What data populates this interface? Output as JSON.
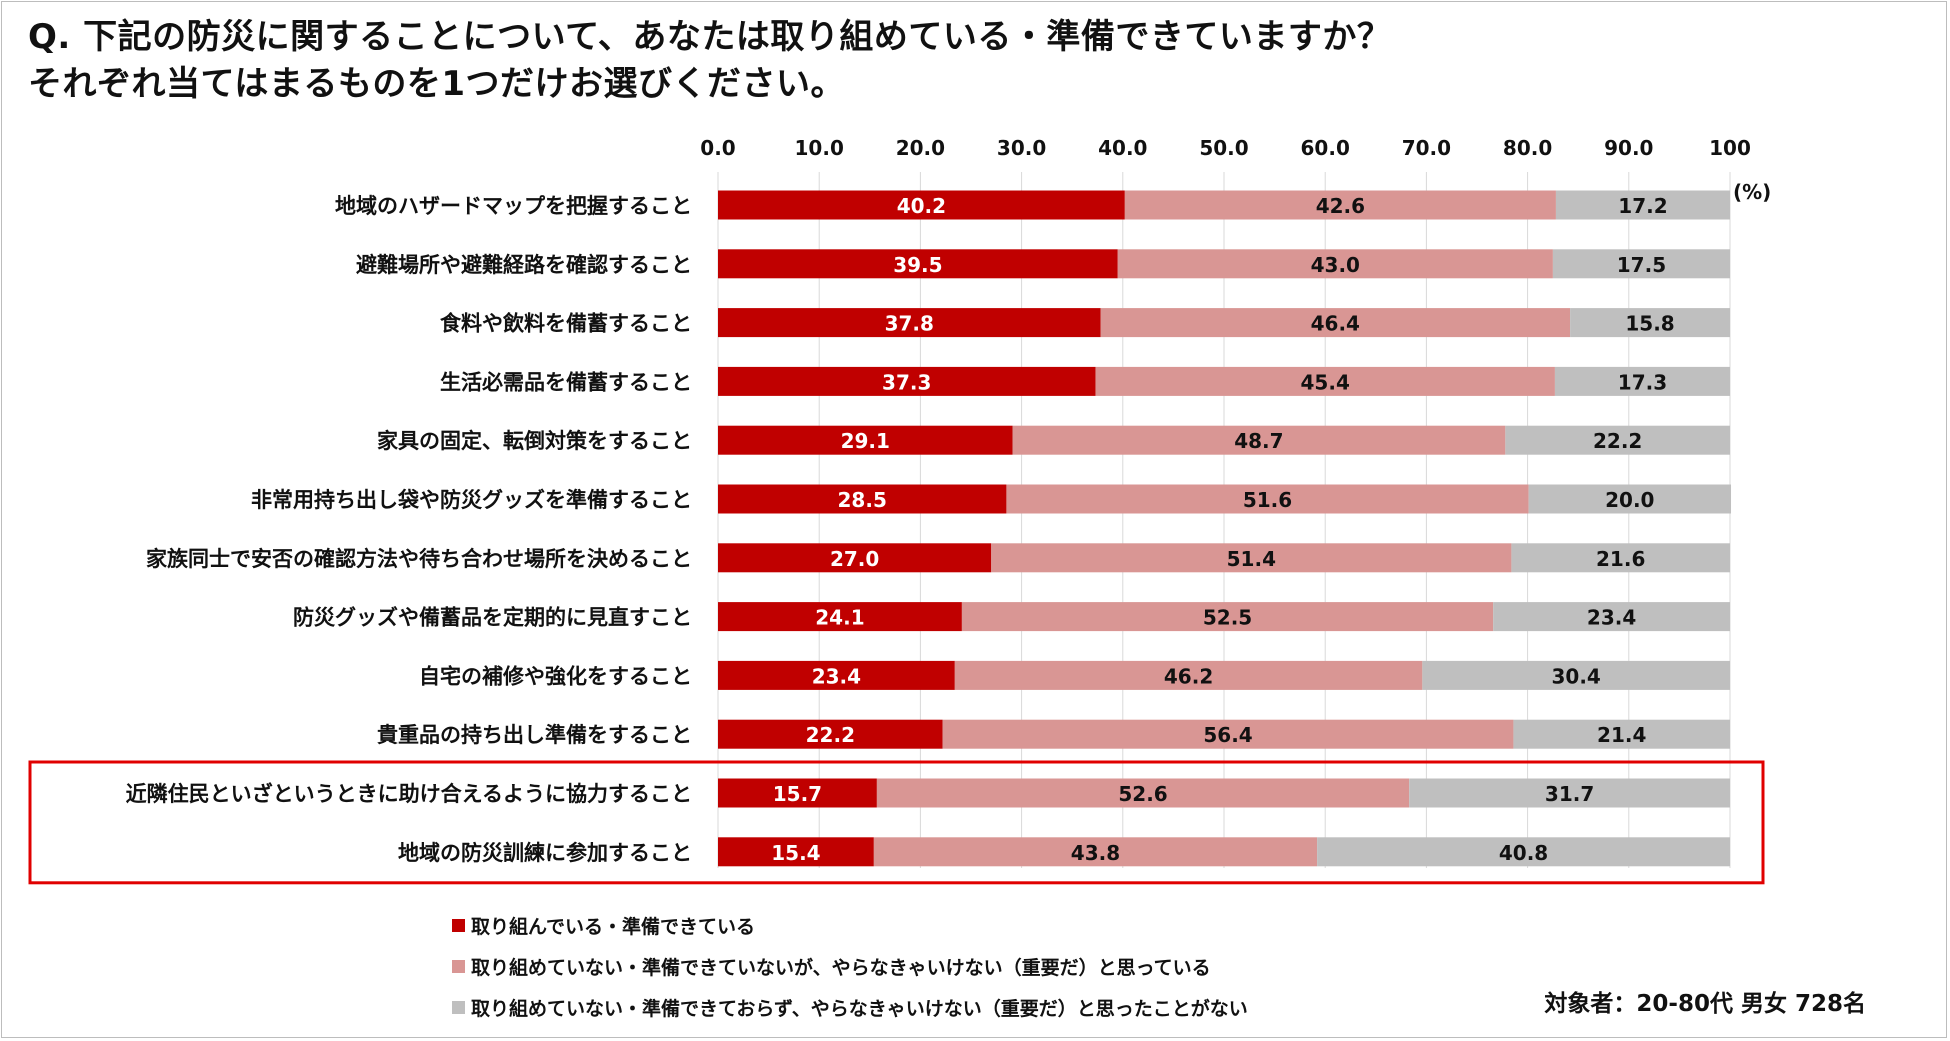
{
  "title": {
    "line1": "Q. 下記の防災に関することについて、あなたは取り組めている・準備できていますか？",
    "line2": "それぞれ当てはまるものを1つだけお選びください。"
  },
  "chart_data": {
    "type": "bar",
    "orientation": "horizontal",
    "stacked": true,
    "unit_label": "(%)",
    "xlim": [
      0,
      100
    ],
    "ticks": [
      "0.0",
      "10.0",
      "20.0",
      "30.0",
      "40.0",
      "50.0",
      "60.0",
      "70.0",
      "80.0",
      "90.0",
      "100"
    ],
    "grid": true,
    "categories": [
      "地域のハザードマップを把握すること",
      "避難場所や避難経路を確認すること",
      "食料や飲料を備蓄すること",
      "生活必需品を備蓄すること",
      "家具の固定、転倒対策をすること",
      "非常用持ち出し袋や防災グッズを準備すること",
      "家族同士で安否の確認方法や待ち合わせ場所を決めること",
      "防災グッズや備蓄品を定期的に見直すこと",
      "自宅の補修や強化をすること",
      "貴重品の持ち出し準備をすること",
      "近隣住民といざというときに助け合えるように協力すること",
      "地域の防災訓練に参加すること"
    ],
    "series": [
      {
        "name": "取り組んでいる・準備できている",
        "color": "#c00000",
        "label_color": "#ffffff",
        "values": [
          40.2,
          39.5,
          37.8,
          37.3,
          29.1,
          28.5,
          27.0,
          24.1,
          23.4,
          22.2,
          15.7,
          15.4
        ],
        "labels": [
          "40.2",
          "39.5",
          "37.8",
          "37.3",
          "29.1",
          "28.5",
          "27.0",
          "24.1",
          "23.4",
          "22.2",
          "15.7",
          "15.4"
        ]
      },
      {
        "name": "取り組めていない・準備できていないが、やらなきゃいけない（重要だ）と思っている",
        "color": "#d99694",
        "label_color": "#111111",
        "values": [
          42.6,
          43.0,
          46.4,
          45.4,
          48.7,
          51.6,
          51.4,
          52.5,
          46.2,
          56.4,
          52.6,
          43.8
        ],
        "labels": [
          "42.6",
          "43.0",
          "46.4",
          "45.4",
          "48.7",
          "51.6",
          "51.4",
          "52.5",
          "46.2",
          "56.4",
          "52.6",
          "43.8"
        ]
      },
      {
        "name": "取り組めていない・準備できておらず、やらなきゃいけない（重要だ）と思ったことがない",
        "color": "#bfbfbf",
        "label_color": "#111111",
        "values": [
          17.2,
          17.5,
          15.8,
          17.3,
          22.2,
          20.0,
          21.6,
          23.4,
          30.4,
          21.4,
          31.7,
          40.8
        ],
        "labels": [
          "17.2",
          "17.5",
          "15.8",
          "17.3",
          "22.2",
          "20.0",
          "21.6",
          "23.4",
          "30.4",
          "21.4",
          "31.7",
          "40.8"
        ]
      }
    ],
    "highlight": {
      "categories": [
        10,
        11
      ],
      "color": "#e00000"
    }
  },
  "footer_note": "対象者：20-80代 男女 728名"
}
